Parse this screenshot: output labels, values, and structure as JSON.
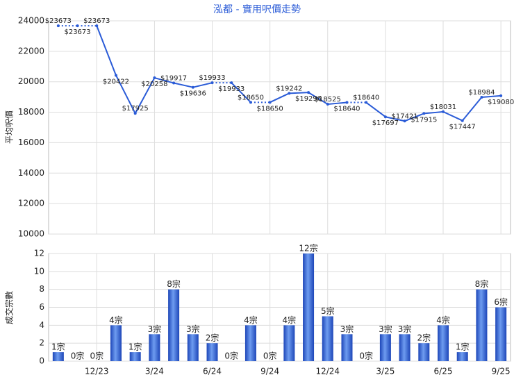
{
  "chart_data": [
    {
      "type": "line",
      "title": "泓都 - 實用呎價走勢",
      "y_label": "平均呎價",
      "categories": [
        null,
        null,
        "12/23",
        null,
        null,
        "3/24",
        null,
        null,
        "6/24",
        null,
        null,
        "9/24",
        null,
        null,
        "12/24",
        null,
        null,
        "3/25",
        null,
        null,
        "6/25",
        null,
        null,
        "9/25"
      ],
      "series": [
        {
          "color": "#2a5bd7",
          "values": [
            23673,
            23673,
            23673,
            20422,
            17925,
            20258,
            19917,
            19636,
            19933,
            19933,
            18650,
            18650,
            19242,
            19296,
            18525,
            18640,
            18640,
            17697,
            17421,
            17915,
            18031,
            17447,
            18984,
            19080
          ],
          "value_labels": [
            "$23673",
            "$23673",
            "$23673",
            "$20422",
            "$17925",
            "$20258",
            "$19917",
            "$19636",
            "$19933",
            "$19933",
            "$18650",
            "$18650",
            "$19242",
            "$19296",
            "$18525",
            "$18640",
            "$18640",
            "$17697",
            "$17421",
            "$17915",
            "$18031",
            "$17447",
            "$18984",
            "$19080"
          ]
        }
      ],
      "ylim": [
        10000,
        24000
      ],
      "yticks": [
        10000,
        12000,
        14000,
        16000,
        18000,
        20000,
        22000,
        24000
      ],
      "grid": true
    },
    {
      "type": "bar",
      "y_label": "成交宗數",
      "categories": [
        null,
        null,
        "12/23",
        null,
        null,
        "3/24",
        null,
        null,
        "6/24",
        null,
        null,
        "9/24",
        null,
        null,
        "12/24",
        null,
        null,
        "3/25",
        null,
        null,
        "6/25",
        null,
        null,
        "9/25"
      ],
      "values": [
        1,
        0,
        0,
        4,
        1,
        3,
        8,
        3,
        2,
        0,
        4,
        0,
        4,
        12,
        5,
        3,
        0,
        3,
        3,
        2,
        4,
        1,
        8,
        6
      ],
      "value_labels": [
        "1宗",
        "0宗",
        "0宗",
        "4宗",
        "1宗",
        "3宗",
        "8宗",
        "3宗",
        "2宗",
        "0宗",
        "4宗",
        "0宗",
        "4宗",
        "12宗",
        "5宗",
        "3宗",
        "0宗",
        "3宗",
        "3宗",
        "2宗",
        "4宗",
        "1宗",
        "8宗",
        "6宗"
      ],
      "color": "#2a5bd7",
      "ylim": [
        0,
        12
      ],
      "yticks": [
        0,
        2,
        4,
        6,
        8,
        10,
        12
      ],
      "grid": true
    }
  ]
}
